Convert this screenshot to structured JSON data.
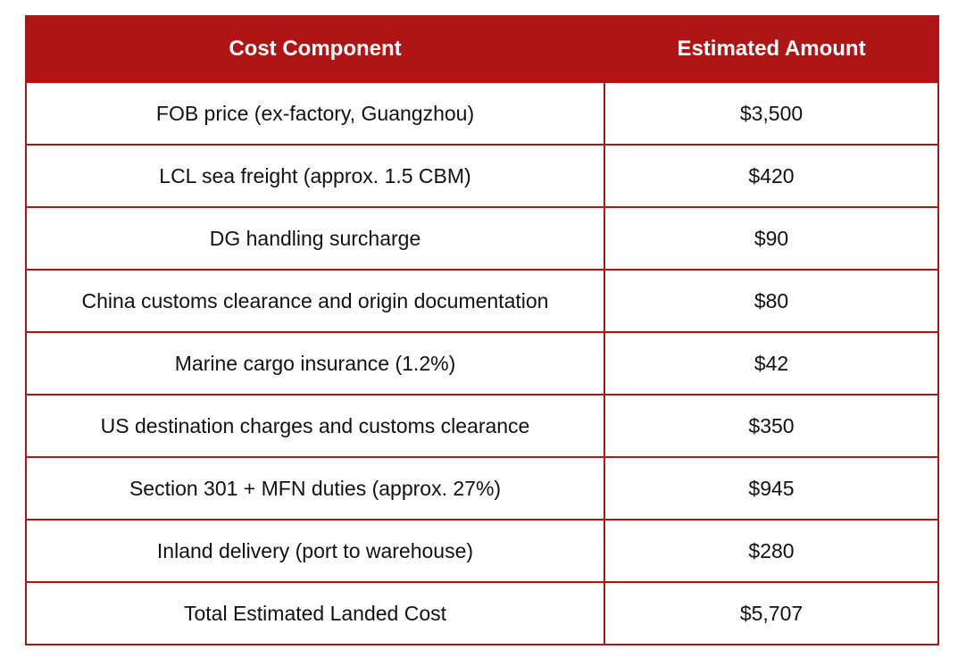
{
  "table": {
    "headers": [
      "Cost Component",
      "Estimated Amount"
    ],
    "rows": [
      {
        "component": "FOB price (ex-factory, Guangzhou)",
        "amount": "$3,500"
      },
      {
        "component": "LCL sea freight (approx. 1.5 CBM)",
        "amount": "$420"
      },
      {
        "component": "DG handling surcharge",
        "amount": "$90"
      },
      {
        "component": "China customs clearance and origin documentation",
        "amount": "$80"
      },
      {
        "component": "Marine cargo insurance (1.2%)",
        "amount": "$42"
      },
      {
        "component": "US destination charges and customs clearance",
        "amount": "$350"
      },
      {
        "component": "Section 301 + MFN duties (approx. 27%)",
        "amount": "$945"
      },
      {
        "component": "Inland delivery (port to warehouse)",
        "amount": "$280"
      },
      {
        "component": "Total Estimated Landed Cost",
        "amount": "$5,707"
      }
    ]
  },
  "colors": {
    "header_bg": "#b01516",
    "border": "#b01516",
    "header_text": "#ffffff",
    "body_text": "#111111"
  }
}
